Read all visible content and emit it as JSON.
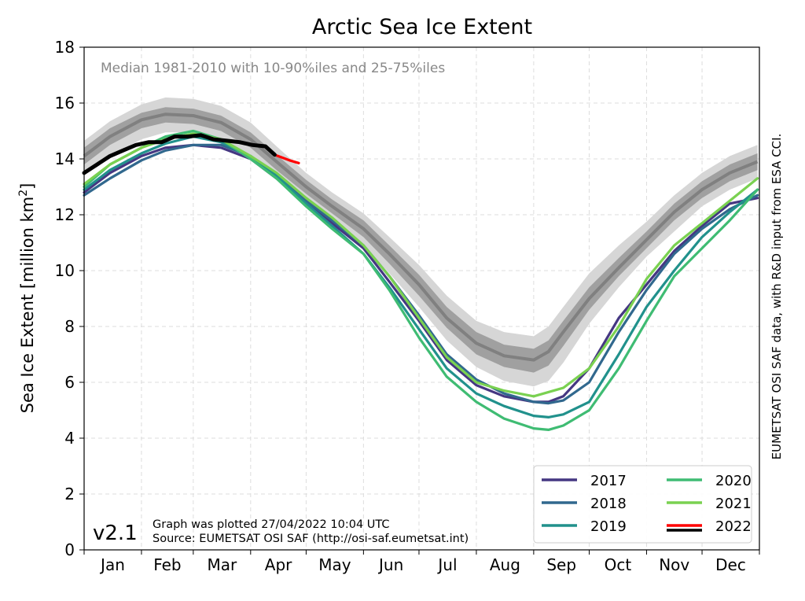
{
  "chart_data": {
    "type": "line",
    "title": "Arctic Sea Ice Extent",
    "subtitle": "Median 1981-2010 with 10-90%iles and 25-75%iles",
    "ylabel": "Sea Ice Extent [million km²]",
    "xlabel": "",
    "ylim": [
      0,
      18
    ],
    "xlim": [
      1,
      365
    ],
    "yticks": [
      0,
      2,
      4,
      6,
      8,
      10,
      12,
      14,
      16,
      18
    ],
    "months": [
      "Jan",
      "Feb",
      "Mar",
      "Apr",
      "May",
      "Jun",
      "Jul",
      "Aug",
      "Sep",
      "Oct",
      "Nov",
      "Dec"
    ],
    "month_starts": [
      1,
      32,
      60,
      91,
      121,
      152,
      182,
      213,
      244,
      274,
      305,
      335,
      366
    ],
    "grid": true,
    "legend_position": "bottom-right",
    "version_label": "v2.1",
    "plotted_note": "Graph was plotted 27/04/2022 10:04 UTC",
    "source_note": "Source: EUMETSAT OSI SAF (http://osi-saf.eumetsat.int)",
    "side_note": "EUMETSAT OSI SAF data, with R&D input from ESA CCI.",
    "median": {
      "x": [
        1,
        15,
        32,
        45,
        60,
        75,
        91,
        105,
        121,
        135,
        152,
        166,
        182,
        197,
        213,
        228,
        244,
        252,
        260,
        274,
        290,
        305,
        320,
        335,
        350,
        365
      ],
      "values": [
        14.1,
        14.8,
        15.4,
        15.6,
        15.55,
        15.3,
        14.7,
        13.9,
        13.0,
        12.3,
        11.5,
        10.6,
        9.5,
        8.3,
        7.4,
        6.95,
        6.8,
        7.1,
        7.8,
        9.0,
        10.1,
        11.1,
        12.1,
        12.9,
        13.5,
        13.9
      ],
      "p25": [
        13.8,
        14.5,
        15.1,
        15.3,
        15.25,
        15.0,
        14.4,
        13.6,
        12.75,
        12.05,
        11.2,
        10.25,
        9.1,
        7.95,
        7.0,
        6.55,
        6.35,
        6.6,
        7.3,
        8.6,
        9.8,
        10.8,
        11.8,
        12.6,
        13.2,
        13.6
      ],
      "p75": [
        14.4,
        15.1,
        15.65,
        15.85,
        15.8,
        15.55,
        14.95,
        14.15,
        13.25,
        12.55,
        11.8,
        10.9,
        9.85,
        8.7,
        7.8,
        7.35,
        7.2,
        7.5,
        8.2,
        9.4,
        10.45,
        11.4,
        12.4,
        13.2,
        13.8,
        14.2
      ],
      "p10": [
        13.4,
        14.1,
        14.7,
        14.95,
        14.95,
        14.7,
        14.1,
        13.3,
        12.5,
        11.8,
        10.9,
        9.9,
        8.7,
        7.5,
        6.55,
        6.05,
        5.85,
        6.05,
        6.7,
        8.1,
        9.4,
        10.5,
        11.4,
        12.3,
        12.9,
        13.3
      ],
      "p90": [
        14.65,
        15.35,
        15.95,
        16.2,
        16.15,
        15.9,
        15.3,
        14.45,
        13.5,
        12.8,
        12.05,
        11.2,
        10.2,
        9.1,
        8.2,
        7.8,
        7.65,
        8.0,
        8.7,
        9.9,
        10.9,
        11.75,
        12.7,
        13.5,
        14.1,
        14.5
      ]
    },
    "series": [
      {
        "name": "2017",
        "color": "#453782",
        "x": [
          1,
          15,
          32,
          45,
          60,
          75,
          91,
          105,
          121,
          135,
          152,
          166,
          182,
          197,
          213,
          228,
          244,
          252,
          260,
          274,
          290,
          305,
          320,
          335,
          350,
          365
        ],
        "values": [
          12.8,
          13.5,
          14.1,
          14.4,
          14.5,
          14.4,
          14.0,
          13.3,
          12.4,
          11.7,
          10.8,
          9.6,
          8.2,
          6.8,
          5.9,
          5.5,
          5.3,
          5.3,
          5.5,
          6.5,
          8.3,
          9.5,
          10.7,
          11.6,
          12.4,
          12.6
        ]
      },
      {
        "name": "2018",
        "color": "#31688e",
        "x": [
          1,
          15,
          32,
          45,
          60,
          75,
          91,
          105,
          121,
          135,
          152,
          166,
          182,
          197,
          213,
          228,
          244,
          252,
          260,
          274,
          290,
          305,
          320,
          335,
          350,
          365
        ],
        "values": [
          12.7,
          13.3,
          13.95,
          14.3,
          14.5,
          14.5,
          14.1,
          13.4,
          12.5,
          11.8,
          10.9,
          9.8,
          8.4,
          7.0,
          6.1,
          5.6,
          5.3,
          5.25,
          5.35,
          6.0,
          7.8,
          9.3,
          10.6,
          11.5,
          12.2,
          12.7
        ]
      },
      {
        "name": "2019",
        "color": "#21918c",
        "x": [
          1,
          15,
          32,
          45,
          60,
          75,
          91,
          105,
          121,
          135,
          152,
          166,
          182,
          197,
          213,
          228,
          244,
          252,
          260,
          274,
          290,
          305,
          320,
          335,
          350,
          365
        ],
        "values": [
          12.9,
          13.6,
          14.2,
          14.55,
          14.8,
          14.6,
          14.1,
          13.4,
          12.4,
          11.6,
          10.6,
          9.4,
          7.9,
          6.5,
          5.6,
          5.15,
          4.8,
          4.75,
          4.85,
          5.3,
          7.0,
          8.7,
          10.0,
          11.2,
          12.1,
          12.9
        ]
      },
      {
        "name": "2020",
        "color": "#3fbc73",
        "x": [
          1,
          15,
          32,
          45,
          60,
          75,
          91,
          105,
          121,
          135,
          152,
          166,
          182,
          197,
          213,
          228,
          244,
          252,
          260,
          274,
          290,
          305,
          320,
          335,
          350,
          365
        ],
        "values": [
          13.0,
          13.8,
          14.4,
          14.8,
          15.0,
          14.7,
          14.0,
          13.3,
          12.3,
          11.5,
          10.6,
          9.3,
          7.6,
          6.2,
          5.3,
          4.7,
          4.35,
          4.3,
          4.45,
          5.0,
          6.5,
          8.2,
          9.8,
          10.8,
          11.8,
          12.9
        ]
      },
      {
        "name": "2021",
        "color": "#7ad151",
        "x": [
          1,
          15,
          32,
          45,
          60,
          75,
          91,
          105,
          121,
          135,
          152,
          166,
          182,
          197,
          213,
          228,
          244,
          252,
          260,
          274,
          290,
          305,
          320,
          335,
          350,
          365
        ],
        "values": [
          13.1,
          13.8,
          14.4,
          14.7,
          14.9,
          14.7,
          14.1,
          13.5,
          12.6,
          11.9,
          10.9,
          9.8,
          8.3,
          6.9,
          6.0,
          5.7,
          5.5,
          5.65,
          5.8,
          6.5,
          8.0,
          9.7,
          10.9,
          11.7,
          12.5,
          13.3
        ]
      },
      {
        "name": "2022",
        "color": "#ff0000",
        "x": [
          104,
          108,
          112,
          117
        ],
        "values": [
          14.15,
          14.05,
          13.95,
          13.85
        ]
      },
      {
        "name": "2022",
        "color": "#000000",
        "x": [
          1,
          8,
          15,
          22,
          29,
          36,
          43,
          50,
          57,
          64,
          71,
          78,
          85,
          92,
          99,
          104
        ],
        "values": [
          13.5,
          13.8,
          14.1,
          14.3,
          14.5,
          14.6,
          14.6,
          14.8,
          14.8,
          14.85,
          14.7,
          14.65,
          14.6,
          14.5,
          14.45,
          14.15
        ]
      }
    ],
    "legend": [
      {
        "name": "2017",
        "color": "#453782"
      },
      {
        "name": "2020",
        "color": "#3fbc73"
      },
      {
        "name": "2018",
        "color": "#31688e"
      },
      {
        "name": "2021",
        "color": "#7ad151"
      },
      {
        "name": "2019",
        "color": "#21918c"
      },
      {
        "name": "2022",
        "color": "#ff0000"
      },
      {
        "name": "2022",
        "color": "#000000"
      }
    ],
    "colors": {
      "median_line": "#808080",
      "band_25_75": "#a0a0a0",
      "band_10_90": "#d6d6d6",
      "grid": "#dddddd",
      "subtitle": "#888888"
    }
  }
}
